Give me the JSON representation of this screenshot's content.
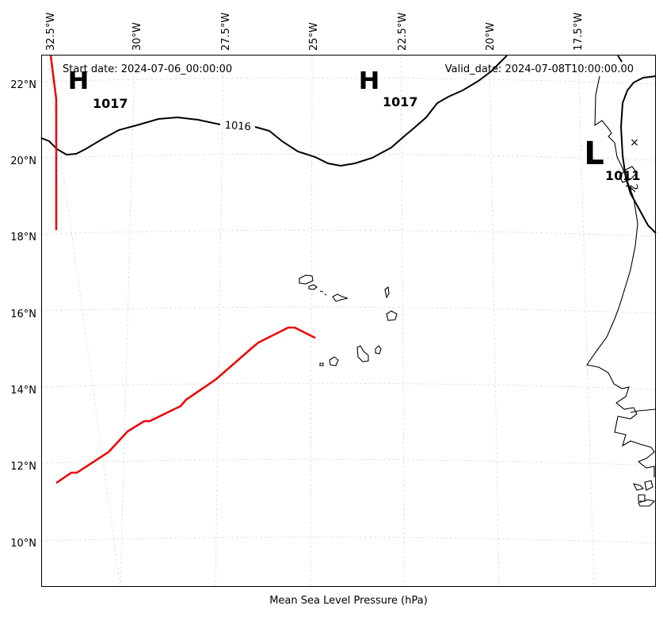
{
  "map": {
    "start_date": "Start date: 2024-07-06_00:00:00",
    "valid_date": "Valid_date: 2024-07-08T10:00:00.00",
    "caption": "Mean Sea Level Pressure (hPa)",
    "contour_value": "1016",
    "contour_value_partial": "2",
    "lon_labels": [
      "32.5°W",
      "30°W",
      "27.5°W",
      "25°W",
      "22.5°W",
      "20°W",
      "17.5°W"
    ],
    "lat_labels": [
      "22°N",
      "20°N",
      "18°N",
      "16°N",
      "14°N",
      "12°N",
      "10°N"
    ],
    "pressure_centers": [
      {
        "type": "H",
        "value": "1017"
      },
      {
        "type": "H",
        "value": "1017"
      },
      {
        "type": "L",
        "value": "1011"
      }
    ],
    "track_color": "#ee0000",
    "contour_color": "#000000",
    "grid_color": "#d9d9d9"
  }
}
